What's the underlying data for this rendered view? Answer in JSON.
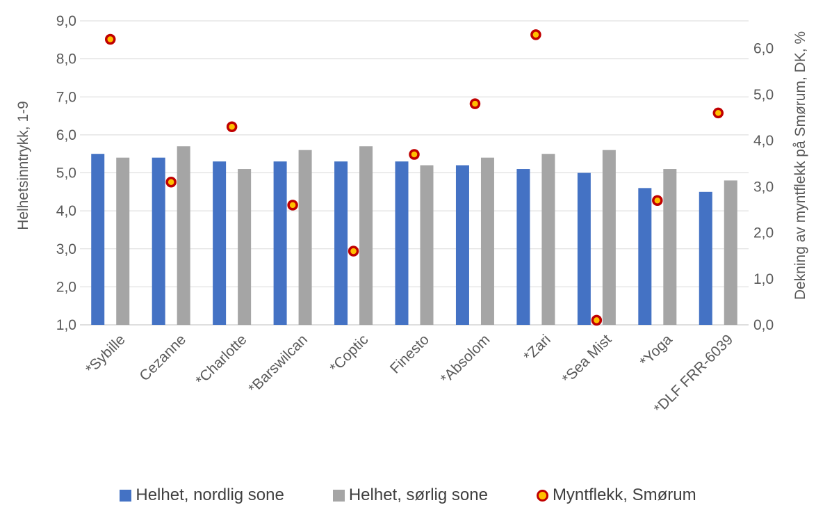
{
  "chart_data": {
    "type": "bar",
    "categories": [
      "*Sybille",
      "Cezanne",
      "*Charlotte",
      "*Barswilcan",
      "*Coptic",
      "Finesto",
      "*Absolom",
      "*Zari",
      "*Sea Mist",
      "*Yoga",
      "*DLF FRR-6039"
    ],
    "series": [
      {
        "name": "Helhet, nordlig sone",
        "axis": "left",
        "kind": "bar",
        "color": "#4472c4",
        "values": [
          5.5,
          5.4,
          5.3,
          5.3,
          5.3,
          5.3,
          5.2,
          5.1,
          5.0,
          4.6,
          4.5
        ]
      },
      {
        "name": "Helhet, sørlig sone",
        "axis": "left",
        "kind": "bar",
        "color": "#a5a5a5",
        "values": [
          5.4,
          5.7,
          5.1,
          5.6,
          5.7,
          5.2,
          5.4,
          5.5,
          5.6,
          5.1,
          4.8
        ]
      },
      {
        "name": "Myntflekk, Smørum",
        "axis": "right",
        "kind": "scatter",
        "color": "#ffc000",
        "edge_color": "#c00000",
        "values": [
          6.2,
          3.1,
          4.3,
          2.6,
          1.6,
          3.7,
          4.8,
          6.3,
          0.1,
          2.7,
          4.6
        ]
      }
    ],
    "ylabel": "Helhetsinntrykk, 1-9",
    "ylim": [
      1,
      9
    ],
    "yticks": [
      "1,0",
      "2,0",
      "3,0",
      "4,0",
      "5,0",
      "6,0",
      "7,0",
      "8,0",
      "9,0"
    ],
    "y2label": "Dekning av myntflekk på Smørum, DK, %",
    "y2lim": [
      0,
      6.6
    ],
    "y2ticks": [
      "0,0",
      "1,0",
      "2,0",
      "3,0",
      "4,0",
      "5,0",
      "6,0"
    ],
    "grid": true,
    "legend_position": "bottom"
  },
  "legend": {
    "items": [
      {
        "label": "Helhet, nordlig sone",
        "color": "#4472c4",
        "marker": "square"
      },
      {
        "label": "Helhet, sørlig sone",
        "color": "#a5a5a5",
        "marker": "square"
      },
      {
        "label": "Myntflekk, Smørum",
        "color": "#ffc000",
        "marker": "circle"
      }
    ]
  }
}
